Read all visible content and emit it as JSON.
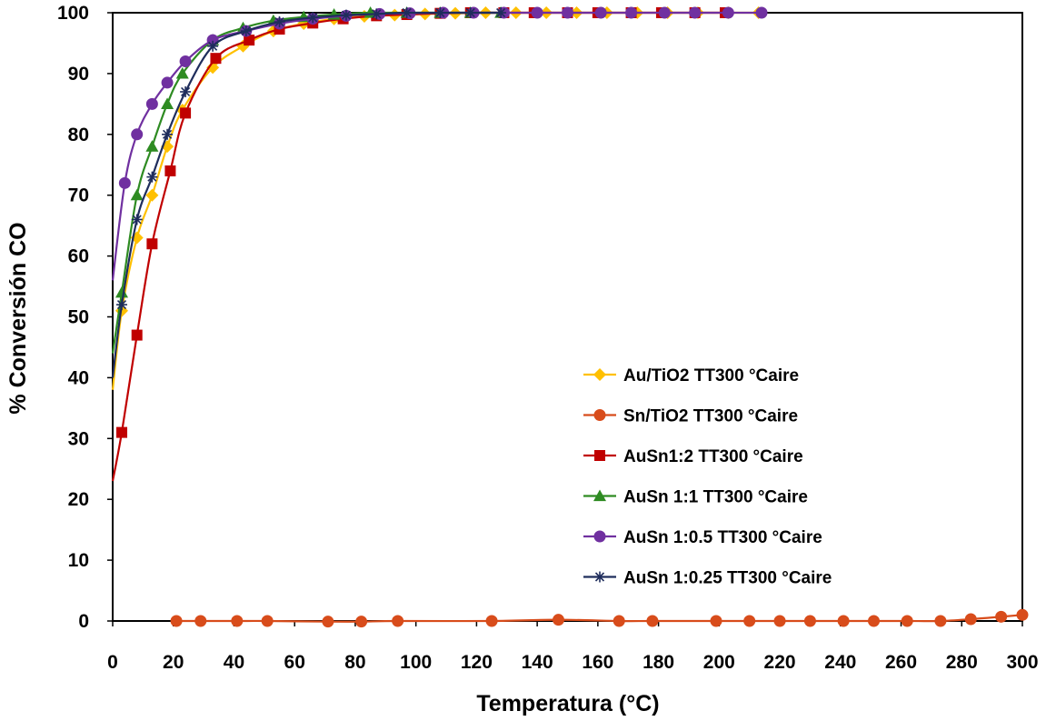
{
  "chart_data": {
    "type": "line",
    "title": "",
    "xlabel": "Temperatura (°C)",
    "ylabel": "% Conversión CO",
    "xlim": [
      0,
      300
    ],
    "ylim": [
      0,
      100
    ],
    "xticks": [
      0,
      20,
      40,
      60,
      80,
      100,
      120,
      140,
      160,
      180,
      200,
      220,
      240,
      260,
      280,
      300
    ],
    "yticks": [
      0,
      10,
      20,
      30,
      40,
      50,
      60,
      70,
      80,
      90,
      100
    ],
    "grid": false,
    "legend_position": "right-middle",
    "series": [
      {
        "name": "Au/TiO2 TT300 °Caire",
        "color": "#FFC000",
        "marker": "diamond",
        "x": [
          0,
          3,
          8,
          13,
          18,
          23,
          33,
          43,
          53,
          63,
          73,
          83,
          93,
          103,
          113,
          123,
          133,
          143,
          153,
          163,
          173,
          183,
          193,
          203,
          213
        ],
        "y": [
          38,
          51,
          63,
          70,
          78,
          84,
          91,
          94.5,
          97,
          98.2,
          99,
          99.4,
          99.6,
          99.8,
          99.9,
          100,
          100,
          100,
          100,
          100,
          100,
          100,
          100,
          100,
          100
        ]
      },
      {
        "name": "Sn/TiO2 TT300 °Caire",
        "color": "#D84C1B",
        "marker": "circle",
        "x": [
          21,
          29,
          41,
          51,
          71,
          82,
          94,
          125,
          147,
          167,
          178,
          199,
          210,
          220,
          230,
          241,
          251,
          262,
          273,
          283,
          293,
          300
        ],
        "y": [
          0,
          0,
          0,
          0,
          -0.1,
          -0.1,
          0,
          0,
          0.2,
          0,
          0,
          0,
          0,
          0,
          0,
          0,
          0,
          0,
          0,
          0.3,
          0.7,
          1
        ]
      },
      {
        "name": "AuSn1:2 TT300 °Caire",
        "color": "#C00000",
        "marker": "square",
        "x": [
          0,
          3,
          8,
          13,
          19,
          24,
          34,
          45,
          55,
          66,
          76,
          87,
          97,
          108,
          118,
          129,
          139,
          150,
          160,
          171,
          181,
          192,
          202
        ],
        "y": [
          23,
          31,
          47,
          62,
          74,
          83.5,
          92.5,
          95.5,
          97.3,
          98.3,
          99,
          99.5,
          99.7,
          99.9,
          100,
          100,
          100,
          100,
          100,
          100,
          100,
          100,
          100
        ]
      },
      {
        "name": "AuSn 1:1 TT300 °Caire",
        "color": "#2E8B22",
        "marker": "triangle",
        "x": [
          0,
          3,
          8,
          13,
          18,
          23,
          33,
          43,
          53,
          63,
          73,
          85,
          97,
          108,
          118,
          128
        ],
        "y": [
          44,
          54,
          70,
          78,
          85,
          90,
          95.5,
          97.5,
          98.7,
          99.3,
          99.7,
          100,
          100,
          100,
          100,
          100
        ]
      },
      {
        "name": "AuSn 1:0.5 TT300 °Caire",
        "color": "#7030A0",
        "marker": "circle",
        "x": [
          0,
          4,
          8,
          13,
          18,
          24,
          33,
          44,
          55,
          66,
          77,
          88,
          98,
          109,
          119,
          129,
          140,
          150,
          161,
          171,
          182,
          192,
          203,
          214
        ],
        "y": [
          56,
          72,
          80,
          85,
          88.5,
          92,
          95.5,
          97,
          98.2,
          99,
          99.5,
          99.8,
          99.9,
          100,
          100,
          100,
          100,
          100,
          100,
          100,
          100,
          100,
          100,
          100
        ]
      },
      {
        "name": "AuSn 1:0.25 TT300 °Caire",
        "color": "#1F2D5C",
        "marker": "star",
        "x": [
          0,
          3,
          8,
          13,
          18,
          24,
          33,
          44,
          55,
          66,
          77,
          87,
          97,
          108,
          118,
          128
        ],
        "y": [
          40,
          52,
          66,
          73,
          80,
          87,
          94.5,
          97,
          98.5,
          99.2,
          99.6,
          99.8,
          100,
          100,
          100,
          100
        ]
      }
    ]
  }
}
